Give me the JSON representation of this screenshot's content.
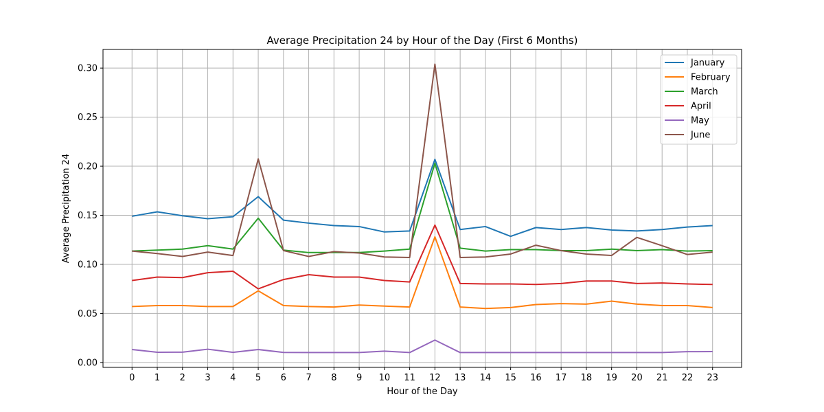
{
  "chart_data": {
    "type": "line",
    "title": "Average Precipitation 24 by Hour of the Day (First 6 Months)",
    "xlabel": "Hour of the Day",
    "ylabel": "Average Precipitation 24",
    "x": [
      0,
      1,
      2,
      3,
      4,
      5,
      6,
      7,
      8,
      9,
      10,
      11,
      12,
      13,
      14,
      15,
      16,
      17,
      18,
      19,
      20,
      21,
      22,
      23
    ],
    "xlim": [
      -1.15,
      24.15
    ],
    "ylim": [
      -0.005,
      0.319
    ],
    "yticks": [
      0.0,
      0.05,
      0.1,
      0.15,
      0.2,
      0.25,
      0.3
    ],
    "ytick_labels": [
      "0.00",
      "0.05",
      "0.10",
      "0.15",
      "0.20",
      "0.25",
      "0.30"
    ],
    "grid": true,
    "legend_position": "top-right",
    "series": [
      {
        "name": "January",
        "color": "#1f77b4",
        "values": [
          0.149,
          0.1535,
          0.1495,
          0.1465,
          0.1485,
          0.169,
          0.145,
          0.142,
          0.1395,
          0.1385,
          0.133,
          0.134,
          0.207,
          0.1355,
          0.1385,
          0.1285,
          0.1375,
          0.1355,
          0.1375,
          0.135,
          0.134,
          0.1355,
          0.138,
          0.1395
        ]
      },
      {
        "name": "February",
        "color": "#ff7f0e",
        "values": [
          0.057,
          0.058,
          0.058,
          0.057,
          0.057,
          0.073,
          0.058,
          0.057,
          0.0565,
          0.0585,
          0.0575,
          0.0565,
          0.128,
          0.0565,
          0.055,
          0.056,
          0.059,
          0.06,
          0.0595,
          0.0625,
          0.0595,
          0.058,
          0.058,
          0.056
        ]
      },
      {
        "name": "March",
        "color": "#2ca02c",
        "values": [
          0.1135,
          0.1145,
          0.1155,
          0.119,
          0.1155,
          0.147,
          0.1145,
          0.112,
          0.112,
          0.112,
          0.1135,
          0.1155,
          0.203,
          0.1165,
          0.1135,
          0.115,
          0.115,
          0.114,
          0.114,
          0.1155,
          0.114,
          0.115,
          0.1135,
          0.114
        ]
      },
      {
        "name": "April",
        "color": "#d62728",
        "values": [
          0.0835,
          0.087,
          0.0865,
          0.0915,
          0.093,
          0.075,
          0.0845,
          0.0895,
          0.087,
          0.087,
          0.0835,
          0.082,
          0.14,
          0.0805,
          0.08,
          0.08,
          0.0795,
          0.0805,
          0.083,
          0.083,
          0.0805,
          0.081,
          0.08,
          0.0795
        ]
      },
      {
        "name": "May",
        "color": "#9467bd",
        "values": [
          0.0132,
          0.0104,
          0.0105,
          0.0135,
          0.0103,
          0.0132,
          0.0102,
          0.0101,
          0.0101,
          0.0101,
          0.0115,
          0.0101,
          0.0228,
          0.0101,
          0.0101,
          0.0101,
          0.0101,
          0.0101,
          0.0101,
          0.0101,
          0.0101,
          0.0101,
          0.011,
          0.0111
        ]
      },
      {
        "name": "June",
        "color": "#8c564b",
        "values": [
          0.1135,
          0.111,
          0.108,
          0.1125,
          0.109,
          0.2075,
          0.114,
          0.108,
          0.113,
          0.1115,
          0.1075,
          0.107,
          0.304,
          0.107,
          0.1075,
          0.1105,
          0.1195,
          0.114,
          0.1105,
          0.109,
          0.1275,
          0.119,
          0.11,
          0.1125
        ]
      }
    ]
  }
}
